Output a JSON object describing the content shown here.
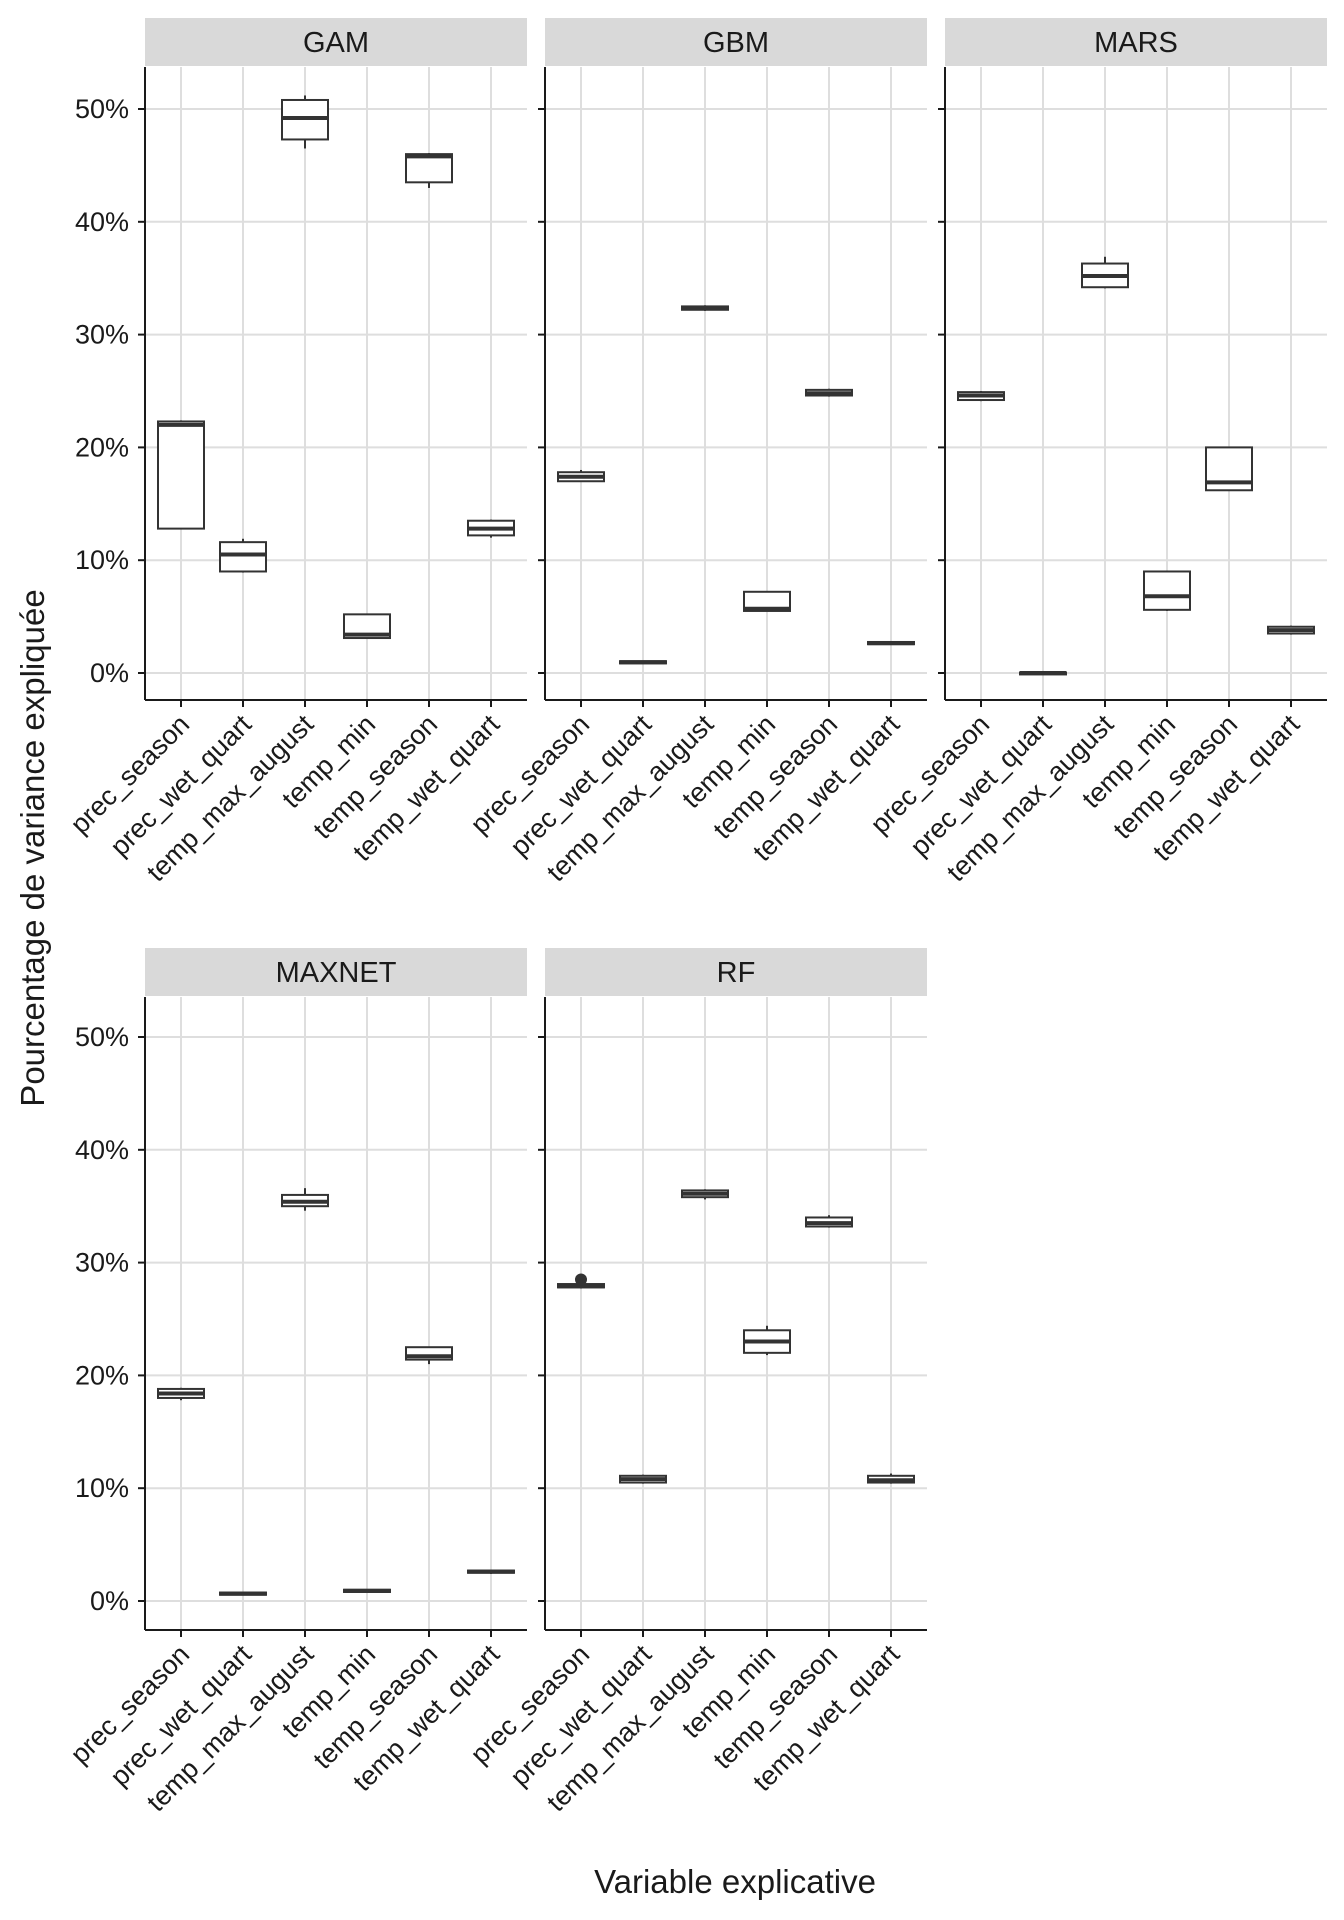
{
  "chart_data": {
    "type": "boxplot",
    "xlabel": "Variable explicative",
    "ylabel": "Pourcentage de variance expliquée",
    "ylim": [
      0,
      52
    ],
    "y_ticks": [
      0,
      10,
      20,
      30,
      40,
      50
    ],
    "y_tick_labels": [
      "0%",
      "10%",
      "20%",
      "30%",
      "40%",
      "50%"
    ],
    "categories": [
      "prec_season",
      "prec_wet_quart",
      "temp_max_august",
      "temp_min",
      "temp_season",
      "temp_wet_quart"
    ],
    "panels": [
      {
        "name": "GAM",
        "boxes": [
          {
            "category": "prec_season",
            "whisker_low": 12.8,
            "q1": 12.8,
            "median": 22.0,
            "q3": 22.3,
            "whisker_high": 22.4,
            "outliers": []
          },
          {
            "category": "prec_wet_quart",
            "whisker_low": 8.9,
            "q1": 9.0,
            "median": 10.5,
            "q3": 11.6,
            "whisker_high": 11.9,
            "outliers": []
          },
          {
            "category": "temp_max_august",
            "whisker_low": 46.5,
            "q1": 47.3,
            "median": 49.2,
            "q3": 50.8,
            "whisker_high": 51.2,
            "outliers": []
          },
          {
            "category": "temp_min",
            "whisker_low": 3.1,
            "q1": 3.1,
            "median": 3.4,
            "q3": 5.2,
            "whisker_high": 5.2,
            "outliers": []
          },
          {
            "category": "temp_season",
            "whisker_low": 43.0,
            "q1": 43.5,
            "median": 45.8,
            "q3": 46.0,
            "whisker_high": 46.1,
            "outliers": []
          },
          {
            "category": "temp_wet_quart",
            "whisker_low": 12.0,
            "q1": 12.2,
            "median": 12.8,
            "q3": 13.5,
            "whisker_high": 13.6,
            "outliers": []
          }
        ]
      },
      {
        "name": "GBM",
        "boxes": [
          {
            "category": "prec_season",
            "whisker_low": 17.0,
            "q1": 17.0,
            "median": 17.4,
            "q3": 17.8,
            "whisker_high": 18.0,
            "outliers": []
          },
          {
            "category": "prec_wet_quart",
            "whisker_low": 0.8,
            "q1": 0.85,
            "median": 0.95,
            "q3": 1.05,
            "whisker_high": 1.1,
            "outliers": []
          },
          {
            "category": "temp_max_august",
            "whisker_low": 32.1,
            "q1": 32.2,
            "median": 32.4,
            "q3": 32.5,
            "whisker_high": 32.6,
            "outliers": []
          },
          {
            "category": "temp_min",
            "whisker_low": 5.5,
            "q1": 5.5,
            "median": 5.7,
            "q3": 7.2,
            "whisker_high": 7.2,
            "outliers": []
          },
          {
            "category": "temp_season",
            "whisker_low": 24.5,
            "q1": 24.6,
            "median": 24.8,
            "q3": 25.1,
            "whisker_high": 25.2,
            "outliers": []
          },
          {
            "category": "temp_wet_quart",
            "whisker_low": 2.5,
            "q1": 2.55,
            "median": 2.65,
            "q3": 2.75,
            "whisker_high": 2.8,
            "outliers": []
          }
        ]
      },
      {
        "name": "MARS",
        "boxes": [
          {
            "category": "prec_season",
            "whisker_low": 24.1,
            "q1": 24.2,
            "median": 24.6,
            "q3": 24.9,
            "whisker_high": 25.0,
            "outliers": []
          },
          {
            "category": "prec_wet_quart",
            "whisker_low": -0.1,
            "q1": -0.05,
            "median": 0.0,
            "q3": 0.05,
            "whisker_high": 0.1,
            "outliers": []
          },
          {
            "category": "temp_max_august",
            "whisker_low": 34.1,
            "q1": 34.2,
            "median": 35.2,
            "q3": 36.3,
            "whisker_high": 36.9,
            "outliers": []
          },
          {
            "category": "temp_min",
            "whisker_low": 5.5,
            "q1": 5.6,
            "median": 6.8,
            "q3": 9.0,
            "whisker_high": 9.0,
            "outliers": []
          },
          {
            "category": "temp_season",
            "whisker_low": 16.2,
            "q1": 16.2,
            "median": 16.9,
            "q3": 20.0,
            "whisker_high": 20.0,
            "outliers": []
          },
          {
            "category": "temp_wet_quart",
            "whisker_low": 3.4,
            "q1": 3.5,
            "median": 3.8,
            "q3": 4.1,
            "whisker_high": 4.2,
            "outliers": []
          }
        ]
      },
      {
        "name": "MAXNET",
        "boxes": [
          {
            "category": "prec_season",
            "whisker_low": 17.8,
            "q1": 18.0,
            "median": 18.4,
            "q3": 18.8,
            "whisker_high": 18.9,
            "outliers": []
          },
          {
            "category": "prec_wet_quart",
            "whisker_low": 0.5,
            "q1": 0.55,
            "median": 0.65,
            "q3": 0.75,
            "whisker_high": 0.8,
            "outliers": []
          },
          {
            "category": "temp_max_august",
            "whisker_low": 34.6,
            "q1": 35.0,
            "median": 35.4,
            "q3": 36.0,
            "whisker_high": 36.6,
            "outliers": []
          },
          {
            "category": "temp_min",
            "whisker_low": 0.75,
            "q1": 0.8,
            "median": 0.9,
            "q3": 1.0,
            "whisker_high": 1.05,
            "outliers": []
          },
          {
            "category": "temp_season",
            "whisker_low": 21.0,
            "q1": 21.4,
            "median": 21.7,
            "q3": 22.5,
            "whisker_high": 22.5,
            "outliers": []
          },
          {
            "category": "temp_wet_quart",
            "whisker_low": 2.4,
            "q1": 2.5,
            "median": 2.6,
            "q3": 2.7,
            "whisker_high": 2.75,
            "outliers": []
          }
        ]
      },
      {
        "name": "RF",
        "boxes": [
          {
            "category": "prec_season",
            "whisker_low": 27.7,
            "q1": 27.8,
            "median": 27.9,
            "q3": 28.1,
            "whisker_high": 28.2,
            "outliers": [
              28.5
            ]
          },
          {
            "category": "prec_wet_quart",
            "whisker_low": 10.4,
            "q1": 10.5,
            "median": 10.8,
            "q3": 11.1,
            "whisker_high": 11.2,
            "outliers": []
          },
          {
            "category": "temp_max_august",
            "whisker_low": 35.6,
            "q1": 35.8,
            "median": 36.1,
            "q3": 36.4,
            "whisker_high": 36.5,
            "outliers": []
          },
          {
            "category": "temp_min",
            "whisker_low": 21.8,
            "q1": 22.0,
            "median": 23.0,
            "q3": 24.0,
            "whisker_high": 24.4,
            "outliers": []
          },
          {
            "category": "temp_season",
            "whisker_low": 33.1,
            "q1": 33.2,
            "median": 33.5,
            "q3": 34.0,
            "whisker_high": 34.2,
            "outliers": []
          },
          {
            "category": "temp_wet_quart",
            "whisker_low": 10.4,
            "q1": 10.5,
            "median": 10.7,
            "q3": 11.1,
            "whisker_high": 11.3,
            "outliers": []
          }
        ]
      }
    ]
  }
}
